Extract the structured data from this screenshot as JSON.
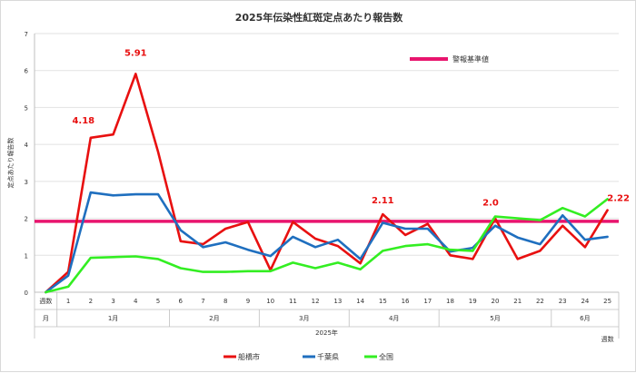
{
  "chart_data": {
    "type": "line",
    "title": "2025年伝染性紅斑定点あたり報告数",
    "ylabel": "定点あたり報告数",
    "xlabel": "2025年",
    "x_unit": "週数",
    "month_unit": "月",
    "ylim": [
      0,
      7
    ],
    "y_ticks": [
      0,
      1,
      2,
      3,
      4,
      5,
      6,
      7
    ],
    "grid": true,
    "x": [
      0,
      1,
      2,
      3,
      4,
      5,
      6,
      7,
      8,
      9,
      10,
      11,
      12,
      13,
      14,
      15,
      16,
      17,
      18,
      19,
      20,
      21,
      22,
      23,
      24,
      25
    ],
    "months": [
      {
        "label": "1月",
        "from": 1,
        "to": 5
      },
      {
        "label": "2月",
        "from": 6,
        "to": 9
      },
      {
        "label": "3月",
        "from": 10,
        "to": 13
      },
      {
        "label": "4月",
        "from": 14,
        "to": 17
      },
      {
        "label": "5月",
        "from": 18,
        "to": 22
      },
      {
        "label": "6月",
        "from": 23,
        "to": 25
      }
    ],
    "series": [
      {
        "name": "船橋市",
        "color": "#e81010",
        "values": [
          0,
          0.55,
          4.18,
          4.27,
          5.91,
          3.8,
          1.38,
          1.3,
          1.72,
          1.9,
          0.6,
          1.9,
          1.45,
          1.25,
          0.78,
          2.11,
          1.55,
          1.85,
          1.0,
          0.9,
          2.0,
          0.9,
          1.12,
          1.8,
          1.22,
          2.22
        ]
      },
      {
        "name": "千葉県",
        "color": "#1f6fbf",
        "values": [
          0,
          0.45,
          2.7,
          2.62,
          2.65,
          2.65,
          1.68,
          1.22,
          1.35,
          1.15,
          0.98,
          1.5,
          1.22,
          1.42,
          0.9,
          1.88,
          1.72,
          1.72,
          1.1,
          1.2,
          1.8,
          1.48,
          1.3,
          2.08,
          1.42,
          1.5
        ]
      },
      {
        "name": "全国",
        "color": "#33ee22",
        "values": [
          0,
          0.15,
          0.93,
          0.95,
          0.97,
          0.9,
          0.65,
          0.55,
          0.55,
          0.57,
          0.57,
          0.8,
          0.65,
          0.8,
          0.62,
          1.12,
          1.25,
          1.3,
          1.15,
          1.12,
          2.05,
          2.0,
          1.95,
          2.28,
          2.05,
          2.52
        ]
      }
    ],
    "threshold": {
      "name": "警報基準値",
      "value": 1.92,
      "color": "#e8156e"
    },
    "annotations": [
      {
        "text": "4.18",
        "x": 2
      },
      {
        "text": "5.91",
        "x": 4
      },
      {
        "text": "2.11",
        "x": 15
      },
      {
        "text": "2.0",
        "x": 20
      },
      {
        "text": "2.22",
        "x": 25
      }
    ]
  }
}
